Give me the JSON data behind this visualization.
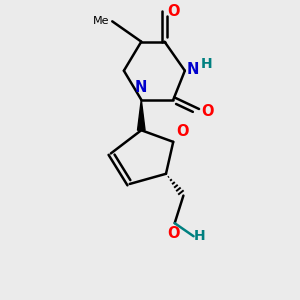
{
  "background_color": "#ebebeb",
  "bond_color": "#000000",
  "N_color": "#0000cc",
  "O_color": "#ff0000",
  "H_color": "#008080",
  "figsize": [
    3.0,
    3.0
  ],
  "dpi": 100,
  "xlim": [
    0,
    10
  ],
  "ylim": [
    0,
    10
  ]
}
